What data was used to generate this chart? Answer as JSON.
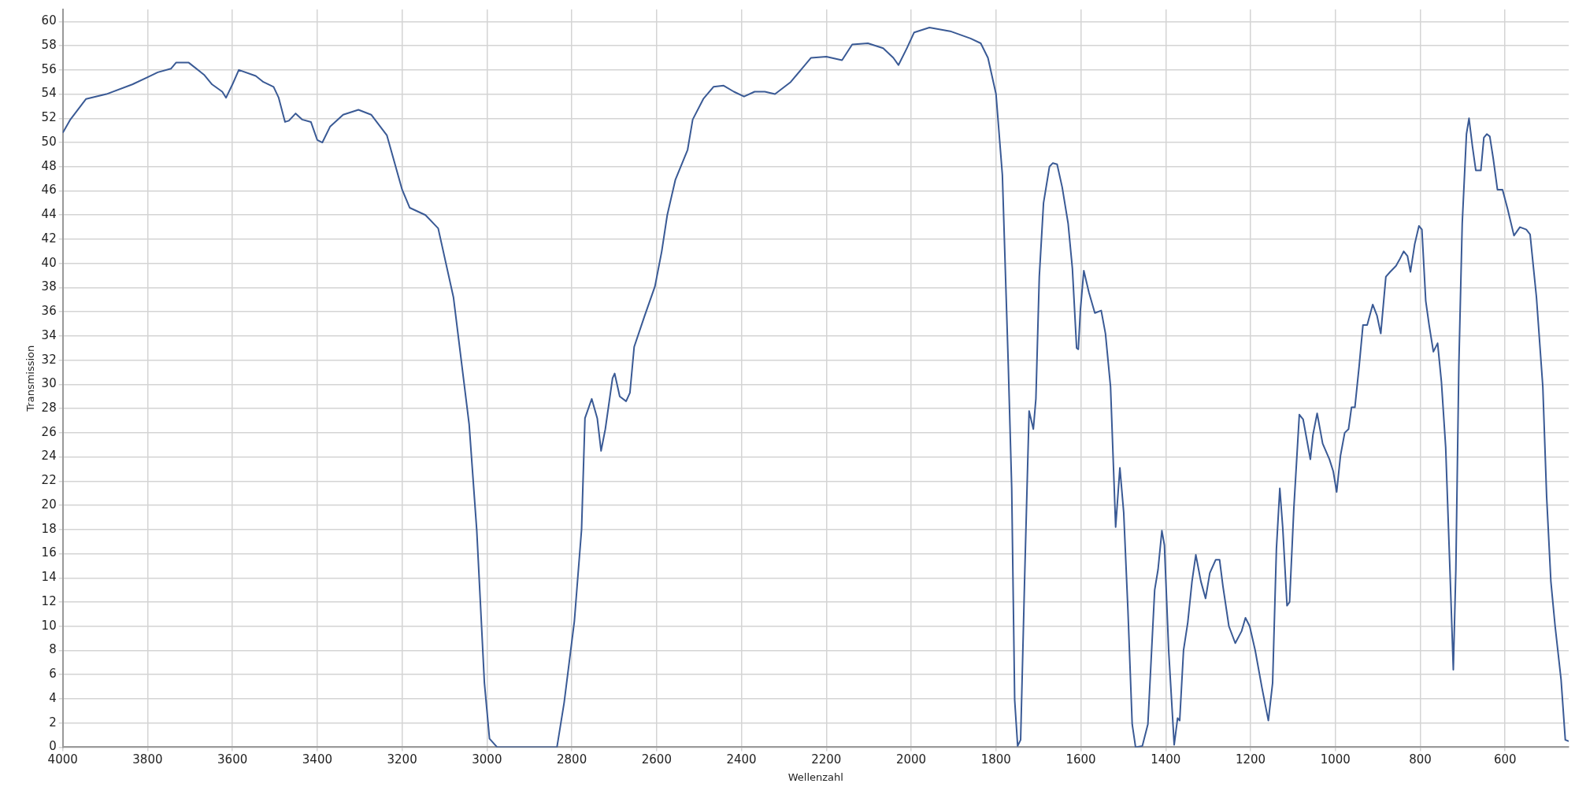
{
  "chart_data": {
    "type": "line",
    "xlabel": "Wellenzahl",
    "ylabel": "Transmission",
    "xlim": [
      4000,
      450
    ],
    "ylim": [
      0,
      61
    ],
    "xticks": [
      4000,
      3800,
      3600,
      3400,
      3200,
      3000,
      2800,
      2600,
      2400,
      2200,
      2000,
      1800,
      1600,
      1400,
      1200,
      1000,
      800,
      600
    ],
    "yticks": [
      0,
      2,
      4,
      6,
      8,
      10,
      12,
      14,
      16,
      18,
      20,
      22,
      24,
      26,
      28,
      30,
      32,
      34,
      36,
      38,
      40,
      42,
      44,
      46,
      48,
      50,
      52,
      54,
      56,
      58,
      60
    ],
    "grid": true,
    "legend": false,
    "marker": "none",
    "line_style": "solid",
    "series": [
      {
        "color": "#3a5a95",
        "x": [
          4000,
          3982,
          3945,
          3897,
          3836,
          3800,
          3776,
          3745,
          3733,
          3703,
          3667,
          3648,
          3624,
          3615,
          3600,
          3585,
          3545,
          3527,
          3503,
          3491,
          3476,
          3467,
          3451,
          3436,
          3415,
          3400,
          3388,
          3370,
          3339,
          3303,
          3273,
          3236,
          3200,
          3182,
          3145,
          3115,
          3079,
          3042,
          3024,
          3006,
          2994,
          2976,
          2835,
          2818,
          2794,
          2777,
          2769,
          2753,
          2740,
          2731,
          2721,
          2704,
          2699,
          2687,
          2672,
          2663,
          2653,
          2629,
          2604,
          2588,
          2575,
          2556,
          2527,
          2515,
          2490,
          2466,
          2442,
          2418,
          2394,
          2369,
          2345,
          2321,
          2284,
          2236,
          2200,
          2163,
          2139,
          2102,
          2066,
          2042,
          2030,
          2010,
          1993,
          1957,
          1908,
          1860,
          1836,
          1819,
          1800,
          1785,
          1771,
          1763,
          1756,
          1749,
          1742,
          1732,
          1722,
          1712,
          1706,
          1698,
          1688,
          1674,
          1666,
          1656,
          1644,
          1630,
          1620,
          1610,
          1606,
          1601,
          1593,
          1581,
          1567,
          1552,
          1542,
          1530,
          1518,
          1508,
          1499,
          1489,
          1479,
          1471,
          1455,
          1442,
          1426,
          1418,
          1409,
          1403,
          1393,
          1380,
          1372,
          1367,
          1358,
          1348,
          1338,
          1329,
          1317,
          1306,
          1296,
          1282,
          1273,
          1265,
          1251,
          1236,
          1221,
          1212,
          1202,
          1189,
          1173,
          1158,
          1148,
          1139,
          1131,
          1124,
          1114,
          1108,
          1098,
          1085,
          1076,
          1059,
          1053,
          1043,
          1030,
          1014,
          1005,
          997,
          988,
          978,
          969,
          962,
          954,
          944,
          935,
          925,
          912,
          902,
          893,
          881,
          871,
          857,
          849,
          839,
          830,
          823,
          813,
          803,
          796,
          787,
          779,
          769,
          759,
          750,
          740,
          730,
          722,
          716,
          709,
          701,
          691,
          685,
          677,
          669,
          657,
          650,
          643,
          636,
          628,
          618,
          606,
          594,
          579,
          565,
          550,
          541,
          526,
          511,
          502,
          492,
          482,
          468,
          458,
          450
        ],
        "values": [
          50.8,
          51.9,
          53.6,
          54.0,
          54.8,
          55.4,
          55.8,
          56.1,
          56.6,
          56.6,
          55.6,
          54.8,
          54.2,
          53.7,
          54.8,
          56.0,
          55.5,
          55.0,
          54.6,
          53.7,
          51.7,
          51.8,
          52.4,
          51.9,
          51.7,
          50.2,
          50.0,
          51.3,
          52.3,
          52.7,
          52.3,
          50.6,
          46.1,
          44.6,
          44.0,
          42.9,
          37.2,
          26.7,
          17.9,
          5.3,
          0.7,
          0,
          0,
          3.7,
          10.4,
          18.0,
          27.2,
          28.8,
          27.2,
          24.5,
          26.3,
          30.5,
          30.9,
          29.0,
          28.6,
          29.3,
          33.1,
          35.6,
          38.1,
          41.0,
          44.0,
          46.9,
          49.4,
          51.9,
          53.6,
          54.6,
          54.7,
          54.2,
          53.8,
          54.2,
          54.2,
          54.0,
          55.0,
          57.0,
          57.1,
          56.8,
          58.1,
          58.2,
          57.8,
          57.0,
          56.4,
          57.8,
          59.1,
          59.5,
          59.2,
          58.6,
          58.2,
          57.0,
          54.0,
          47.3,
          31.5,
          21.4,
          3.9,
          0.1,
          0.6,
          14.7,
          27.8,
          26.3,
          28.8,
          38.9,
          45.0,
          48.0,
          48.3,
          48.2,
          46.3,
          43.3,
          39.6,
          33.0,
          32.9,
          36.2,
          39.4,
          37.6,
          35.9,
          36.1,
          34.2,
          29.8,
          18.2,
          23.1,
          19.4,
          11.3,
          1.9,
          0,
          0.1,
          1.9,
          13.0,
          14.7,
          17.9,
          16.7,
          8.0,
          0.2,
          2.4,
          2.2,
          8.0,
          10.3,
          13.7,
          15.9,
          13.7,
          12.3,
          14.4,
          15.5,
          15.5,
          13.3,
          10.0,
          8.6,
          9.6,
          10.7,
          10.0,
          8.0,
          4.9,
          2.2,
          5.3,
          16.4,
          21.4,
          18.1,
          11.7,
          12.0,
          19.7,
          27.5,
          27.1,
          23.8,
          25.8,
          27.6,
          25.1,
          23.8,
          22.8,
          21.1,
          24.1,
          26.0,
          26.3,
          28.1,
          28.1,
          31.5,
          34.9,
          34.9,
          36.6,
          35.7,
          34.2,
          38.9,
          39.3,
          39.8,
          40.3,
          41.0,
          40.6,
          39.3,
          41.6,
          43.1,
          42.8,
          36.9,
          34.9,
          32.7,
          33.4,
          30.2,
          24.8,
          14.7,
          6.4,
          14.7,
          31.5,
          43.3,
          50.7,
          52.0,
          49.7,
          47.7,
          47.7,
          50.4,
          50.7,
          50.5,
          48.7,
          46.1,
          46.1,
          44.5,
          42.3,
          43.0,
          42.8,
          42.4,
          37.2,
          29.8,
          20.7,
          13.7,
          10.0,
          5.6,
          0.6,
          0.5
        ]
      }
    ]
  }
}
